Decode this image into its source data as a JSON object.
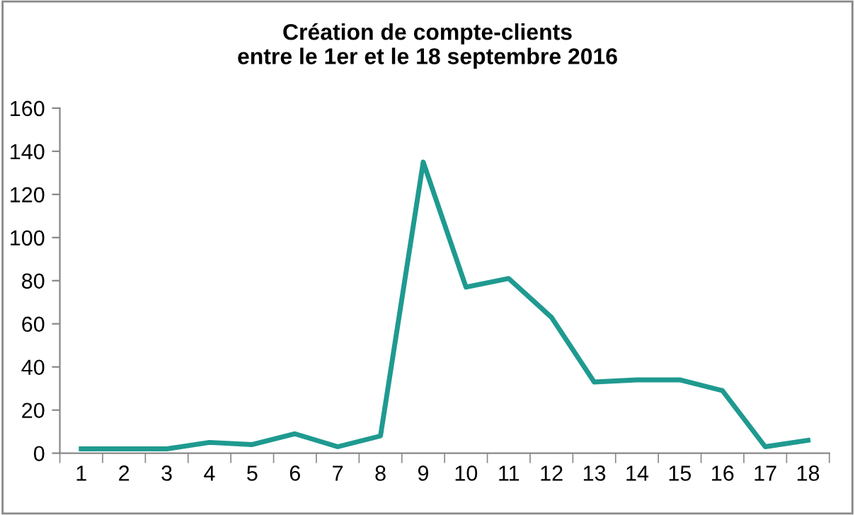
{
  "chart_data": {
    "type": "line",
    "title": "Création de compte-clients\nentre le 1er et le 18 septembre 2016",
    "categories": [
      "1",
      "2",
      "3",
      "4",
      "5",
      "6",
      "7",
      "8",
      "9",
      "10",
      "11",
      "12",
      "13",
      "14",
      "15",
      "16",
      "17",
      "18"
    ],
    "series": [
      {
        "color": "#1f9a90",
        "values": [
          2,
          2,
          2,
          5,
          4,
          9,
          3,
          8,
          135,
          77,
          81,
          63,
          33,
          34,
          34,
          29,
          3,
          6
        ]
      }
    ],
    "ylim": [
      0,
      160
    ],
    "yticks": [
      0,
      20,
      40,
      60,
      80,
      100,
      120,
      140,
      160
    ],
    "grid": false,
    "legend": false,
    "marker": "none",
    "line_style": "solid"
  }
}
